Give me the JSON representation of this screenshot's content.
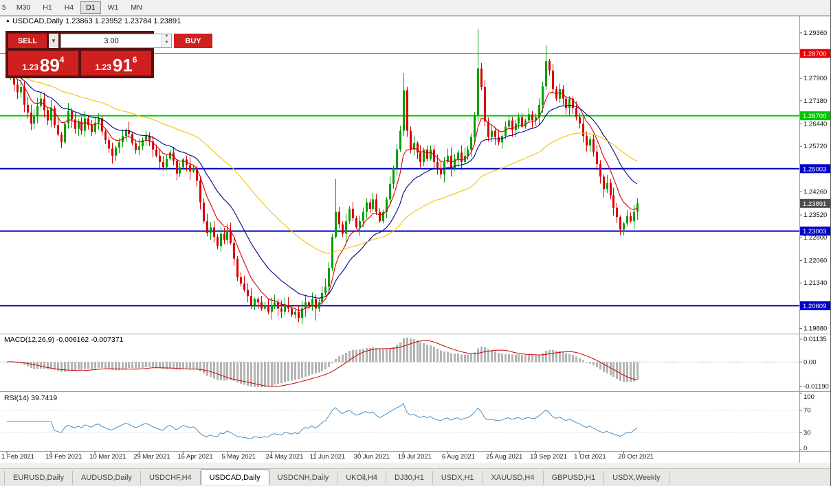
{
  "toolbar": {
    "periods": [
      "5",
      "M30",
      "H1",
      "H4",
      "D1",
      "W1",
      "MN"
    ],
    "active_period": "D1"
  },
  "chart_header": {
    "collapse_icon": "▲",
    "symbol_timeframe": "USDCAD,Daily",
    "ohlc_text": "1.23863 1.23952 1.23784 1.23891"
  },
  "trade_panel": {
    "sell_label": "SELL",
    "buy_label": "BUY",
    "volume": "3.00",
    "dropdown_icon": "▼",
    "spin_up_icon": "▲",
    "spin_down_icon": "▼",
    "sell_price": {
      "small": "1.23",
      "big": "89",
      "sup": "4"
    },
    "buy_price": {
      "small": "1.23",
      "big": "91",
      "sup": "6"
    }
  },
  "indicators": {
    "macd": {
      "name": "MACD(12,26,9)",
      "values": "-0.006162 -0.007371",
      "axis_top": "0.01135",
      "axis_zero": "0.00",
      "axis_bottom": "-0.01190"
    },
    "rsi": {
      "name": "RSI(14)",
      "value": "39.7419",
      "axis": [
        "100",
        "70",
        "30",
        "0"
      ]
    }
  },
  "tabs": {
    "active_index": 3,
    "items": [
      "EURUSD,Daily",
      "AUDUSD,Daily",
      "USDCHF,H4",
      "USDCAD,Daily",
      "USDCNH,Daily",
      "UKOil,H4",
      "DJ30,H1",
      "USDX,H1",
      "XAUUSD,H4",
      "GBPUSD,H1",
      "USDX,Weekly"
    ]
  },
  "chart_data": {
    "type": "candlestick",
    "symbol": "USDCAD",
    "timeframe": "Daily",
    "last_ohlc": {
      "open": 1.23863,
      "high": 1.23952,
      "low": 1.23784,
      "close": 1.23891
    },
    "price_axis": {
      "max": 1.2962,
      "min": 1.1976,
      "plain_labels": [
        {
          "text": "1.29360",
          "price": 1.2936
        },
        {
          "text": "1.27900",
          "price": 1.279
        },
        {
          "text": "1.27180",
          "price": 1.2718
        },
        {
          "text": "1.26440",
          "price": 1.2644
        },
        {
          "text": "1.25720",
          "price": 1.2572
        },
        {
          "text": "1.24260",
          "price": 1.2426
        },
        {
          "text": "1.23520",
          "price": 1.2352
        },
        {
          "text": "1.22800",
          "price": 1.228
        },
        {
          "text": "1.22060",
          "price": 1.2206
        },
        {
          "text": "1.21340",
          "price": 1.2134
        },
        {
          "text": "1.19880",
          "price": 1.1988
        }
      ],
      "badges": [
        {
          "text": "1.28700",
          "price": 1.287,
          "color": "#e80000"
        },
        {
          "text": "1.26700",
          "price": 1.267,
          "color": "#00c400"
        },
        {
          "text": "1.25003",
          "price": 1.25003,
          "color": "#0000c8"
        },
        {
          "text": "1.23891",
          "price": 1.23891,
          "color": "#4d4d4d"
        },
        {
          "text": "1.23003",
          "price": 1.23003,
          "color": "#0000c8"
        },
        {
          "text": "1.20609",
          "price": 1.20609,
          "color": "#0000c8"
        }
      ]
    },
    "hlines": [
      {
        "price": 1.287,
        "color": "#e80000",
        "width": 1
      },
      {
        "price": 1.267,
        "color": "#00cc00",
        "width": 2
      },
      {
        "price": 1.25003,
        "color": "#0000c0",
        "width": 2
      },
      {
        "price": 1.23003,
        "color": "#0000c0",
        "width": 2
      },
      {
        "price": 1.20609,
        "color": "#0000c0",
        "width": 2
      }
    ],
    "x_labels": [
      "1 Feb 2021",
      "19 Feb 2021",
      "10 Mar 2021",
      "29 Mar 2021",
      "16 Apr 2021",
      "5 May 2021",
      "24 May 2021",
      "11 Jun 2021",
      "30 Jun 2021",
      "19 Jul 2021",
      "6 Aug 2021",
      "25 Aug 2021",
      "13 Sep 2021",
      "1 Oct 2021",
      "20 Oct 2021"
    ],
    "label_step": 13,
    "open_first": 1.2852,
    "closes": [
      1.28,
      1.2835,
      1.277,
      1.2745,
      1.2762,
      1.2705,
      1.268,
      1.2645,
      1.2668,
      1.2702,
      1.2725,
      1.2688,
      1.2655,
      1.2695,
      1.264,
      1.261,
      1.2585,
      1.2645,
      1.2685,
      1.2658,
      1.2628,
      1.2652,
      1.2622,
      1.2662,
      1.264,
      1.2618,
      1.2648,
      1.2662,
      1.262,
      1.2592,
      1.2565,
      1.2542,
      1.2568,
      1.2585,
      1.2605,
      1.2625,
      1.2612,
      1.2582,
      1.256,
      1.2572,
      1.2592,
      1.2605,
      1.2588,
      1.2562,
      1.2542,
      1.2522,
      1.2505,
      1.2532,
      1.2552,
      1.2525,
      1.2485,
      1.2505,
      1.253,
      1.2512,
      1.2492,
      1.2502,
      1.2462,
      1.2392,
      1.2332,
      1.2295,
      1.2312,
      1.2282,
      1.2252,
      1.2292,
      1.2272,
      1.2302,
      1.2262,
      1.2212,
      1.2152,
      1.2132,
      1.2112,
      1.2092,
      1.2062,
      1.2082,
      1.2072,
      1.2052,
      1.2062,
      1.2042,
      1.2062,
      1.2072,
      1.2052,
      1.2042,
      1.2062,
      1.2052,
      1.2032,
      1.2042,
      1.2022,
      1.2052,
      1.2072,
      1.2062,
      1.2082,
      1.2052,
      1.2072,
      1.2102,
      1.2122,
      1.2182,
      1.2282,
      1.2362,
      1.2322,
      1.2292,
      1.2332,
      1.2372,
      1.2342,
      1.2312,
      1.2332,
      1.2362,
      1.2392,
      1.2372,
      1.2402,
      1.2362,
      1.2332,
      1.2362,
      1.2402,
      1.2452,
      1.2502,
      1.2562,
      1.2622,
      1.2752,
      1.2622,
      1.2562,
      1.2582,
      1.2552,
      1.2522,
      1.2562,
      1.2532,
      1.2562,
      1.2522,
      1.2502,
      1.2482,
      1.2522,
      1.2542,
      1.2502,
      1.2532,
      1.2552,
      1.2522,
      1.2542,
      1.2562,
      1.2602,
      1.2672,
      1.2822,
      1.2762,
      1.2652,
      1.2602,
      1.2622,
      1.2602,
      1.2585,
      1.2605,
      1.2635,
      1.2655,
      1.2625,
      1.2645,
      1.2665,
      1.2635,
      1.2655,
      1.2675,
      1.2655,
      1.2665,
      1.2705,
      1.2765,
      1.2845,
      1.2815,
      1.2755,
      1.2725,
      1.2755,
      1.2725,
      1.2695,
      1.2725,
      1.2695,
      1.2665,
      1.2645,
      1.2605,
      1.2575,
      1.2595,
      1.2555,
      1.2515,
      1.2475,
      1.2435,
      1.2455,
      1.2415,
      1.2375,
      1.2345,
      1.2305,
      1.2325,
      1.2348,
      1.2332,
      1.2362,
      1.23891
    ],
    "wick_high_overrides": {
      "0": 1.2868,
      "97": 1.2468,
      "117": 1.2807,
      "139": 1.2949,
      "159": 1.2896
    },
    "wick_low_overrides": {
      "86": 1.2008,
      "91": 1.2014,
      "181": 1.2287
    },
    "moving_averages": [
      {
        "period": 8,
        "color": "#d40000"
      },
      {
        "period": 20,
        "color": "#000080"
      },
      {
        "period": 55,
        "color": "#f2c200"
      }
    ],
    "colors": {
      "up": "#00a000",
      "down": "#dc0000",
      "macd_hist": "#b4b4b4",
      "macd_signal": "#c80000",
      "rsi_line": "#4a8fc2"
    }
  }
}
